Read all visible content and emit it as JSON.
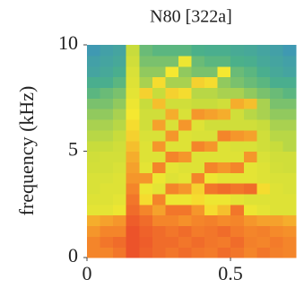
{
  "chart_data": {
    "type": "heatmap",
    "title": "N80 [322a]",
    "ylabel": "frequency (kHz)",
    "xlim": [
      0,
      0.728
    ],
    "ylim": [
      0,
      10
    ],
    "xticks": [
      0,
      0.5
    ],
    "yticks": [
      0,
      5,
      10
    ],
    "zlim": [
      0.2,
      1
    ],
    "colors": [
      "#3a8fc4",
      "#4bb08a",
      "#c8dc3c",
      "#f5e830",
      "#f58a2a",
      "#e83a2a"
    ],
    "xedges": [
      0,
      0.0455,
      0.091,
      0.1365,
      0.182,
      0.2275,
      0.273,
      0.3185,
      0.364,
      0.4095,
      0.455,
      0.5005,
      0.546,
      0.5915,
      0.637,
      0.6825,
      0.728
    ],
    "yedges": [
      0,
      0.5,
      1,
      1.5,
      2,
      2.5,
      3,
      3.5,
      4,
      4.5,
      5,
      5.5,
      6,
      6.5,
      7,
      7.5,
      8,
      8.5,
      9,
      9.5,
      10
    ],
    "z": [
      [
        0.85,
        0.85,
        0.88,
        0.95,
        0.92,
        0.9,
        0.88,
        0.9,
        0.88,
        0.87,
        0.9,
        0.88,
        0.85,
        0.88,
        0.86,
        0.85
      ],
      [
        0.85,
        0.88,
        0.9,
        0.95,
        0.93,
        0.9,
        0.9,
        0.88,
        0.9,
        0.88,
        0.87,
        0.9,
        0.86,
        0.85,
        0.87,
        0.85
      ],
      [
        0.82,
        0.85,
        0.85,
        0.95,
        0.92,
        0.9,
        0.88,
        0.9,
        0.87,
        0.88,
        0.9,
        0.87,
        0.85,
        0.86,
        0.84,
        0.83
      ],
      [
        0.78,
        0.8,
        0.82,
        0.93,
        0.9,
        0.85,
        0.85,
        0.83,
        0.85,
        0.86,
        0.84,
        0.85,
        0.82,
        0.8,
        0.8,
        0.78
      ],
      [
        0.62,
        0.62,
        0.65,
        0.9,
        0.85,
        0.8,
        0.88,
        0.88,
        0.82,
        0.7,
        0.75,
        0.88,
        0.65,
        0.62,
        0.6,
        0.6
      ],
      [
        0.6,
        0.6,
        0.62,
        0.88,
        0.7,
        0.85,
        0.65,
        0.65,
        0.7,
        0.65,
        0.65,
        0.62,
        0.6,
        0.6,
        0.6,
        0.6
      ],
      [
        0.58,
        0.6,
        0.6,
        0.85,
        0.65,
        0.62,
        0.85,
        0.82,
        0.72,
        0.88,
        0.9,
        0.88,
        0.9,
        0.7,
        0.6,
        0.58
      ],
      [
        0.58,
        0.58,
        0.6,
        0.82,
        0.82,
        0.65,
        0.6,
        0.62,
        0.85,
        0.65,
        0.62,
        0.62,
        0.62,
        0.6,
        0.58,
        0.58
      ],
      [
        0.56,
        0.56,
        0.58,
        0.8,
        0.62,
        0.85,
        0.62,
        0.6,
        0.6,
        0.85,
        0.82,
        0.85,
        0.62,
        0.6,
        0.56,
        0.55
      ],
      [
        0.55,
        0.56,
        0.56,
        0.78,
        0.6,
        0.6,
        0.85,
        0.82,
        0.6,
        0.6,
        0.6,
        0.6,
        0.82,
        0.58,
        0.55,
        0.55
      ],
      [
        0.52,
        0.52,
        0.55,
        0.75,
        0.6,
        0.82,
        0.6,
        0.6,
        0.85,
        0.82,
        0.6,
        0.58,
        0.58,
        0.55,
        0.52,
        0.5
      ],
      [
        0.5,
        0.5,
        0.52,
        0.72,
        0.58,
        0.58,
        0.82,
        0.6,
        0.58,
        0.58,
        0.85,
        0.82,
        0.8,
        0.55,
        0.5,
        0.5
      ],
      [
        0.48,
        0.48,
        0.5,
        0.7,
        0.55,
        0.8,
        0.58,
        0.82,
        0.6,
        0.55,
        0.55,
        0.55,
        0.55,
        0.52,
        0.48,
        0.48
      ],
      [
        0.45,
        0.45,
        0.48,
        0.68,
        0.55,
        0.55,
        0.78,
        0.58,
        0.82,
        0.8,
        0.78,
        0.55,
        0.5,
        0.48,
        0.45,
        0.45
      ],
      [
        0.42,
        0.42,
        0.45,
        0.65,
        0.52,
        0.75,
        0.55,
        0.55,
        0.52,
        0.52,
        0.55,
        0.78,
        0.75,
        0.48,
        0.42,
        0.42
      ],
      [
        0.38,
        0.4,
        0.42,
        0.62,
        0.72,
        0.52,
        0.72,
        0.7,
        0.5,
        0.5,
        0.48,
        0.48,
        0.45,
        0.42,
        0.4,
        0.38
      ],
      [
        0.35,
        0.35,
        0.38,
        0.6,
        0.48,
        0.7,
        0.48,
        0.48,
        0.72,
        0.7,
        0.45,
        0.42,
        0.4,
        0.38,
        0.35,
        0.35
      ],
      [
        0.3,
        0.32,
        0.35,
        0.58,
        0.45,
        0.45,
        0.68,
        0.45,
        0.42,
        0.42,
        0.68,
        0.4,
        0.38,
        0.35,
        0.32,
        0.3
      ],
      [
        0.28,
        0.3,
        0.32,
        0.55,
        0.42,
        0.42,
        0.42,
        0.65,
        0.4,
        0.38,
        0.38,
        0.36,
        0.35,
        0.32,
        0.3,
        0.28
      ],
      [
        0.25,
        0.28,
        0.3,
        0.52,
        0.4,
        0.38,
        0.38,
        0.38,
        0.36,
        0.35,
        0.35,
        0.33,
        0.32,
        0.3,
        0.28,
        0.25
      ]
    ]
  }
}
